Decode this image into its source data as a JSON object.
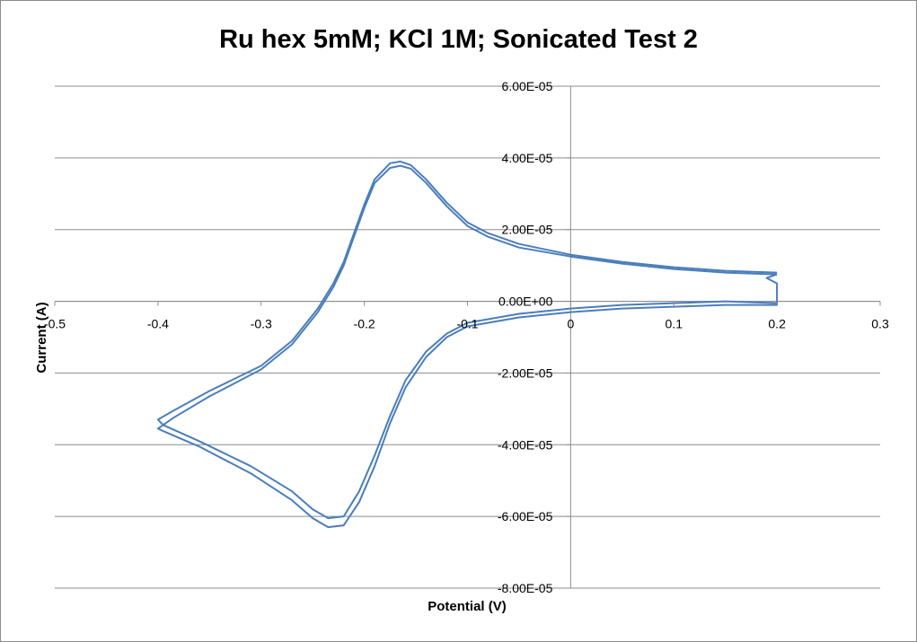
{
  "chart_data": {
    "type": "scatter",
    "title": "Ru hex 5mM; KCl 1M; Sonicated Test 2",
    "xlabel": "Potential (V)",
    "ylabel": "Current (A)",
    "xlim": [
      -0.5,
      0.3
    ],
    "ylim": [
      -8e-05,
      6e-05
    ],
    "x_ticks": [
      "-0.5",
      "-0.4",
      "-0.3",
      "-0.2",
      "-0.1",
      "0",
      "0.1",
      "0.2",
      "0.3"
    ],
    "y_ticks": [
      "6.00E-05",
      "4.00E-05",
      "2.00E-05",
      "0.00E+00",
      "-2.00E-05",
      "-4.00E-05",
      "-6.00E-05",
      "-8.00E-05"
    ],
    "grid": "horizontal",
    "line_color": "#4a7ebb",
    "series": [
      {
        "points": [
          [
            0.2,
            8e-06
          ],
          [
            0.15,
            8.5e-06
          ],
          [
            0.1,
            9.5e-06
          ],
          [
            0.05,
            1.1e-05
          ],
          [
            0.0,
            1.3e-05
          ],
          [
            -0.05,
            1.6e-05
          ],
          [
            -0.08,
            1.9e-05
          ],
          [
            -0.1,
            2.2e-05
          ],
          [
            -0.12,
            2.75e-05
          ],
          [
            -0.14,
            3.4e-05
          ],
          [
            -0.155,
            3.8e-05
          ],
          [
            -0.165,
            3.9e-05
          ],
          [
            -0.175,
            3.85e-05
          ],
          [
            -0.19,
            3.4e-05
          ],
          [
            -0.2,
            2.7e-05
          ],
          [
            -0.21,
            1.9e-05
          ],
          [
            -0.22,
            1.1e-05
          ],
          [
            -0.23,
            5e-06
          ],
          [
            -0.245,
            -2e-06
          ],
          [
            -0.27,
            -1.1e-05
          ],
          [
            -0.3,
            -1.8e-05
          ],
          [
            -0.35,
            -2.5e-05
          ],
          [
            -0.385,
            -3.05e-05
          ],
          [
            -0.4,
            -3.3e-05
          ],
          [
            -0.395,
            -3.45e-05
          ],
          [
            -0.36,
            -3.9e-05
          ],
          [
            -0.31,
            -4.6e-05
          ],
          [
            -0.27,
            -5.3e-05
          ],
          [
            -0.25,
            -5.8e-05
          ],
          [
            -0.235,
            -6.05e-05
          ],
          [
            -0.22,
            -6e-05
          ],
          [
            -0.205,
            -5.3e-05
          ],
          [
            -0.19,
            -4.3e-05
          ],
          [
            -0.175,
            -3.2e-05
          ],
          [
            -0.16,
            -2.2e-05
          ],
          [
            -0.14,
            -1.4e-05
          ],
          [
            -0.12,
            -9e-06
          ],
          [
            -0.1,
            -6e-06
          ],
          [
            -0.05,
            -3.5e-06
          ],
          [
            0.0,
            -2e-06
          ],
          [
            0.05,
            -1e-06
          ],
          [
            0.1,
            -5e-07
          ],
          [
            0.15,
            0.0
          ],
          [
            0.2,
            -5e-07
          ]
        ]
      },
      {
        "points": [
          [
            0.2,
            7.5e-06
          ],
          [
            0.15,
            8e-06
          ],
          [
            0.1,
            9e-06
          ],
          [
            0.05,
            1.05e-05
          ],
          [
            0.0,
            1.25e-05
          ],
          [
            -0.05,
            1.5e-05
          ],
          [
            -0.08,
            1.8e-05
          ],
          [
            -0.1,
            2.1e-05
          ],
          [
            -0.12,
            2.65e-05
          ],
          [
            -0.14,
            3.3e-05
          ],
          [
            -0.155,
            3.7e-05
          ],
          [
            -0.165,
            3.78e-05
          ],
          [
            -0.175,
            3.72e-05
          ],
          [
            -0.19,
            3.3e-05
          ],
          [
            -0.2,
            2.6e-05
          ],
          [
            -0.21,
            1.8e-05
          ],
          [
            -0.22,
            1e-05
          ],
          [
            -0.23,
            4e-06
          ],
          [
            -0.245,
            -3e-06
          ],
          [
            -0.27,
            -1.2e-05
          ],
          [
            -0.3,
            -1.9e-05
          ],
          [
            -0.35,
            -2.65e-05
          ],
          [
            -0.385,
            -3.25e-05
          ],
          [
            -0.4,
            -3.55e-05
          ],
          [
            -0.395,
            -3.62e-05
          ],
          [
            -0.36,
            -4.05e-05
          ],
          [
            -0.31,
            -4.8e-05
          ],
          [
            -0.27,
            -5.55e-05
          ],
          [
            -0.25,
            -6.05e-05
          ],
          [
            -0.235,
            -6.3e-05
          ],
          [
            -0.22,
            -6.25e-05
          ],
          [
            -0.205,
            -5.6e-05
          ],
          [
            -0.19,
            -4.6e-05
          ],
          [
            -0.175,
            -3.4e-05
          ],
          [
            -0.16,
            -2.4e-05
          ],
          [
            -0.14,
            -1.55e-05
          ],
          [
            -0.12,
            -1e-05
          ],
          [
            -0.1,
            -7e-06
          ],
          [
            -0.05,
            -4.5e-06
          ],
          [
            0.0,
            -3e-06
          ],
          [
            0.05,
            -2e-06
          ],
          [
            0.1,
            -1.5e-06
          ],
          [
            0.15,
            -1e-06
          ],
          [
            0.2,
            -1e-06
          ],
          [
            0.2,
            5e-06
          ],
          [
            0.19,
            6.5e-06
          ],
          [
            0.2,
            7.5e-06
          ]
        ]
      }
    ]
  }
}
